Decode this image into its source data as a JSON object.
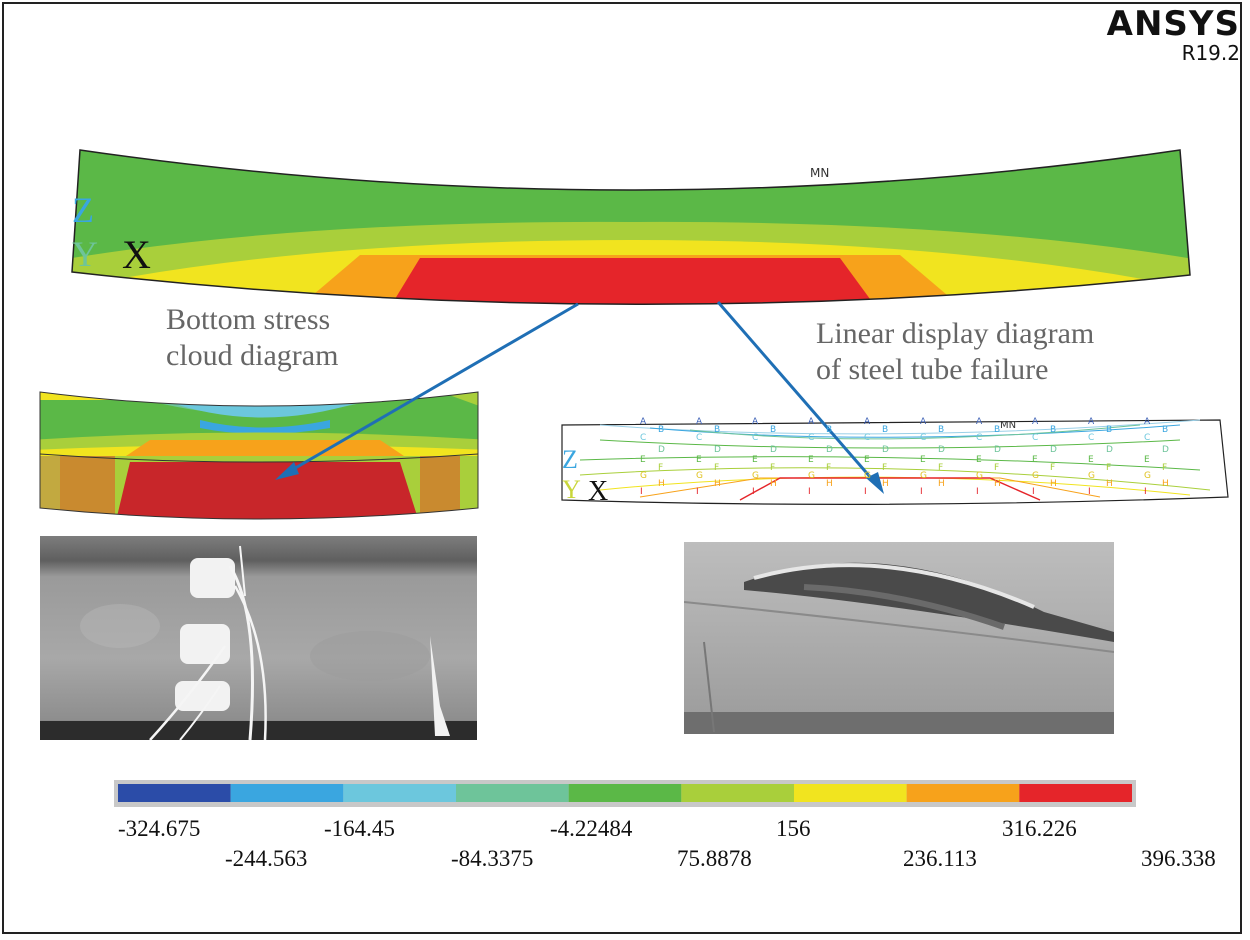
{
  "brand": {
    "name": "ANSYS",
    "version": "R19.2"
  },
  "captions": {
    "bottom_stress": [
      "Bottom stress",
      "cloud diagram"
    ],
    "linear_display": [
      "Linear display diagram",
      "of steel tube failure"
    ]
  },
  "axis_labels": {
    "z": "Z",
    "y": "Y",
    "x": "X",
    "mn": "MN"
  },
  "contour_letters": [
    "A",
    "B",
    "C",
    "D",
    "E",
    "F",
    "G",
    "H",
    "I"
  ],
  "legend": {
    "colors": [
      "#2b4ca8",
      "#3aa6e0",
      "#6cc7dd",
      "#6ec49a",
      "#5bb847",
      "#a9cf3b",
      "#f1e41f",
      "#f7a21b",
      "#e5252a"
    ],
    "ticks_top": [
      "-324.675",
      "-164.45",
      "-4.22484",
      "156",
      "316.226"
    ],
    "ticks_bottom": [
      "-244.563",
      "-84.3375",
      "75.8878",
      "236.113",
      "396.338"
    ]
  },
  "colors": {
    "arrow": "#1f6fb5",
    "background": "#ffffff"
  }
}
